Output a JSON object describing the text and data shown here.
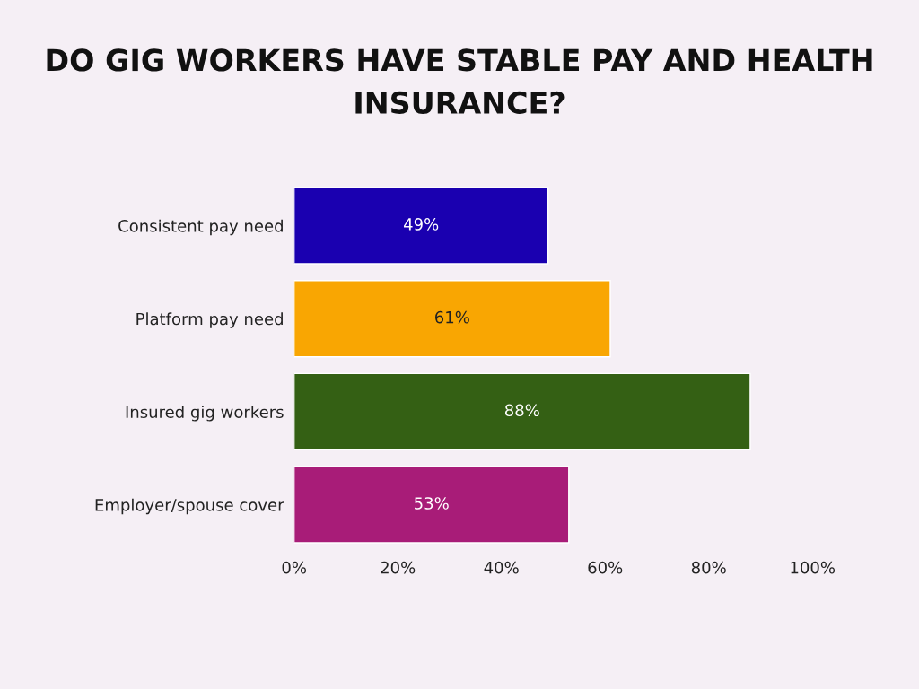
{
  "chart_data": {
    "type": "bar",
    "orientation": "horizontal",
    "title": "DO GIG WORKERS HAVE STABLE PAY AND HEALTH INSURANCE?",
    "categories": [
      "Consistent pay need",
      "Platform pay need",
      "Insured gig workers",
      "Employer/spouse cover"
    ],
    "values": [
      49,
      61,
      88,
      53
    ],
    "colors": [
      "#1a00b0",
      "#f9a602",
      "#346014",
      "#a81c78"
    ],
    "value_labels": [
      "49%",
      "61%",
      "88%",
      "53%"
    ],
    "xlim": [
      0,
      100
    ],
    "xticks": [
      {
        "value": 0,
        "label": "0%"
      },
      {
        "value": 20,
        "label": "20%"
      },
      {
        "value": 40,
        "label": "40%"
      },
      {
        "value": 60,
        "label": "60%"
      },
      {
        "value": 80,
        "label": "80%"
      },
      {
        "value": 100,
        "label": "100%"
      }
    ],
    "grid": false,
    "legend": false
  }
}
